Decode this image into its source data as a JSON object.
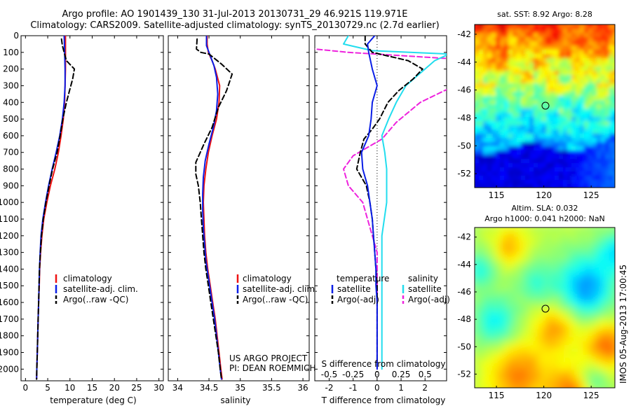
{
  "header": {
    "title_line1": "Argo profile: AO 1901439_130 31-Jul-2013 20130731_29 46.921S 119.971E",
    "title_line2": "Climatology: CARS2009. Satellite-adjusted climatology: synTS_20130729.nc (2.7d earlier)"
  },
  "credits": {
    "project": "US ARGO PROJECT",
    "pi": "PI: DEAN ROEMMICH",
    "side_stamp": "IMOS 05-Aug-2013 17:00:45"
  },
  "colors": {
    "climatology": "#ee1111",
    "satellite": "#0a1ee6",
    "argo": "#000000",
    "sal_satellite": "#22ddee",
    "sal_argo": "#ee22dd"
  },
  "chart_data": [
    {
      "type": "line",
      "panel": "temperature",
      "xlabel": "temperature (deg C)",
      "ylabel": "",
      "xlim": [
        -1,
        31
      ],
      "ylim": [
        2070,
        0
      ],
      "x_ticks": [
        "0",
        "5",
        "10",
        "15",
        "20",
        "25",
        "30"
      ],
      "y_ticks": [
        "0",
        "100",
        "200",
        "300",
        "400",
        "500",
        "600",
        "700",
        "800",
        "900",
        "1000",
        "1100",
        "1200",
        "1300",
        "1400",
        "1500",
        "1600",
        "1700",
        "1800",
        "1900",
        "2000"
      ],
      "legend": [
        "climatology",
        "satellite-adj. clim.",
        "Argo(..raw -QC)"
      ],
      "series": [
        {
          "name": "climatology",
          "style": "solid",
          "points": [
            [
              9,
              0
            ],
            [
              9,
              100
            ],
            [
              9,
              200
            ],
            [
              8.9,
              300
            ],
            [
              8.8,
              400
            ],
            [
              8.5,
              500
            ],
            [
              8,
              600
            ],
            [
              7.4,
              700
            ],
            [
              6.6,
              800
            ],
            [
              5.6,
              900
            ],
            [
              4.8,
              1000
            ],
            [
              4.1,
              1100
            ],
            [
              3.7,
              1200
            ],
            [
              3.4,
              1300
            ],
            [
              3.2,
              1400
            ],
            [
              3.1,
              1500
            ],
            [
              2.95,
              1600
            ],
            [
              2.85,
              1700
            ],
            [
              2.75,
              1800
            ],
            [
              2.65,
              1900
            ],
            [
              2.55,
              2000
            ],
            [
              2.5,
              2060
            ]
          ]
        },
        {
          "name": "satellite-adj. clim.",
          "style": "solid",
          "points": [
            [
              8.7,
              0
            ],
            [
              8.8,
              100
            ],
            [
              8.9,
              200
            ],
            [
              8.9,
              300
            ],
            [
              8.7,
              400
            ],
            [
              8.3,
              500
            ],
            [
              7.7,
              600
            ],
            [
              6.9,
              700
            ],
            [
              6,
              800
            ],
            [
              5.2,
              900
            ],
            [
              4.5,
              1000
            ],
            [
              3.9,
              1100
            ],
            [
              3.5,
              1200
            ],
            [
              3.3,
              1300
            ],
            [
              3.15,
              1400
            ],
            [
              3.05,
              1500
            ],
            [
              2.95,
              1600
            ],
            [
              2.85,
              1700
            ],
            [
              2.75,
              1800
            ],
            [
              2.65,
              1900
            ],
            [
              2.55,
              2000
            ],
            [
              2.5,
              2060
            ]
          ]
        },
        {
          "name": "Argo(..raw -QC)",
          "style": "dashed",
          "points": [
            [
              8.1,
              20
            ],
            [
              8.3,
              60
            ],
            [
              8.7,
              100
            ],
            [
              9.2,
              150
            ],
            [
              11,
              200
            ],
            [
              10.6,
              260
            ],
            [
              9.9,
              330
            ],
            [
              9.2,
              400
            ],
            [
              8.4,
              500
            ],
            [
              7.8,
              600
            ],
            [
              7.1,
              700
            ],
            [
              6.1,
              800
            ],
            [
              5.3,
              900
            ],
            [
              4.6,
              1000
            ],
            [
              4,
              1100
            ],
            [
              3.6,
              1200
            ],
            [
              3.35,
              1300
            ],
            [
              3.15,
              1400
            ],
            [
              3.05,
              1500
            ],
            [
              2.95,
              1600
            ],
            [
              2.85,
              1700
            ],
            [
              2.75,
              1800
            ],
            [
              2.65,
              1900
            ],
            [
              2.55,
              2000
            ],
            [
              2.5,
              2060
            ]
          ]
        }
      ]
    },
    {
      "type": "line",
      "panel": "salinity",
      "xlabel": "salinity",
      "ylabel": "",
      "xlim": [
        33.85,
        36.1
      ],
      "ylim": [
        2070,
        0
      ],
      "x_ticks": [
        "34",
        "34.5",
        "35",
        "35.5",
        "36"
      ],
      "legend": [
        "climatology",
        "satellite-adj. clim.",
        "Argo(..raw -QC)"
      ],
      "series": [
        {
          "name": "climatology",
          "style": "solid",
          "points": [
            [
              34.47,
              0
            ],
            [
              34.47,
              50
            ],
            [
              34.49,
              100
            ],
            [
              34.55,
              150
            ],
            [
              34.6,
              200
            ],
            [
              34.67,
              300
            ],
            [
              34.66,
              400
            ],
            [
              34.62,
              500
            ],
            [
              34.55,
              600
            ],
            [
              34.49,
              700
            ],
            [
              34.45,
              800
            ],
            [
              34.42,
              900
            ],
            [
              34.41,
              1000
            ],
            [
              34.42,
              1100
            ],
            [
              34.43,
              1200
            ],
            [
              34.45,
              1300
            ],
            [
              34.48,
              1400
            ],
            [
              34.52,
              1500
            ],
            [
              34.56,
              1600
            ],
            [
              34.6,
              1700
            ],
            [
              34.63,
              1800
            ],
            [
              34.66,
              1900
            ],
            [
              34.69,
              2000
            ],
            [
              34.71,
              2060
            ]
          ]
        },
        {
          "name": "satellite-adj. clim.",
          "style": "solid",
          "points": [
            [
              34.46,
              0
            ],
            [
              34.46,
              60
            ],
            [
              34.5,
              100
            ],
            [
              34.58,
              180
            ],
            [
              34.62,
              250
            ],
            [
              34.64,
              350
            ],
            [
              34.62,
              450
            ],
            [
              34.57,
              550
            ],
            [
              34.5,
              650
            ],
            [
              34.44,
              750
            ],
            [
              34.41,
              850
            ],
            [
              34.4,
              950
            ],
            [
              34.4,
              1050
            ],
            [
              34.41,
              1150
            ],
            [
              34.43,
              1250
            ],
            [
              34.45,
              1350
            ],
            [
              34.47,
              1400
            ],
            [
              34.51,
              1500
            ],
            [
              34.55,
              1600
            ],
            [
              34.59,
              1700
            ],
            [
              34.62,
              1800
            ],
            [
              34.65,
              1900
            ],
            [
              34.68,
              2000
            ],
            [
              34.7,
              2060
            ]
          ]
        },
        {
          "name": "Argo(..raw -QC)",
          "style": "dashed",
          "points": [
            [
              34.31,
              20
            ],
            [
              34.3,
              80
            ],
            [
              34.37,
              100
            ],
            [
              34.5,
              110
            ],
            [
              34.7,
              170
            ],
            [
              34.87,
              230
            ],
            [
              34.78,
              330
            ],
            [
              34.65,
              430
            ],
            [
              34.55,
              550
            ],
            [
              34.42,
              650
            ],
            [
              34.29,
              760
            ],
            [
              34.29,
              830
            ],
            [
              34.33,
              900
            ],
            [
              34.36,
              1000
            ],
            [
              34.38,
              1100
            ],
            [
              34.4,
              1200
            ],
            [
              34.42,
              1300
            ],
            [
              34.45,
              1400
            ],
            [
              34.49,
              1500
            ],
            [
              34.53,
              1600
            ],
            [
              34.57,
              1700
            ],
            [
              34.61,
              1800
            ],
            [
              34.65,
              1900
            ],
            [
              34.68,
              2000
            ],
            [
              34.7,
              2060
            ]
          ]
        }
      ]
    },
    {
      "type": "line",
      "panel": "difference",
      "xlabel_top": "S difference from climatology",
      "xlabel_bottom": "T difference from climatology",
      "xlim": [
        -2.6,
        2.9
      ],
      "ylim": [
        2070,
        0
      ],
      "x_ticks_bottom": [
        "-2",
        "-1",
        "0",
        "1",
        "2"
      ],
      "x_ticks_top": [
        "-0.5",
        "-0.25",
        "0",
        "0.25",
        "0.5"
      ],
      "legend_headers": [
        "temperature",
        "salinity"
      ],
      "legend": [
        "satellite",
        "Argo(-adj)",
        "satellite",
        "Argo(-adj)"
      ],
      "series": [
        {
          "name": "satellite",
          "group": "temperature",
          "style": "solid",
          "points": [
            [
              -0.1,
              0
            ],
            [
              -0.4,
              50
            ],
            [
              -0.35,
              100
            ],
            [
              -0.2,
              200
            ],
            [
              0,
              300
            ],
            [
              -0.2,
              400
            ],
            [
              -0.25,
              500
            ],
            [
              -0.35,
              600
            ],
            [
              -0.65,
              700
            ],
            [
              -0.6,
              800
            ],
            [
              -0.4,
              900
            ],
            [
              -0.3,
              1000
            ],
            [
              -0.2,
              1100
            ],
            [
              -0.15,
              1200
            ],
            [
              -0.1,
              1300
            ],
            [
              -0.05,
              1400
            ],
            [
              -0.05,
              1500
            ],
            [
              0,
              1600
            ],
            [
              0,
              2000
            ]
          ]
        },
        {
          "name": "Argo(-adj)",
          "group": "temperature",
          "style": "dashed",
          "points": [
            [
              -0.5,
              0
            ],
            [
              -0.5,
              50
            ],
            [
              -0.2,
              100
            ],
            [
              1.3,
              150
            ],
            [
              1.9,
              200
            ],
            [
              1.5,
              260
            ],
            [
              0.9,
              330
            ],
            [
              0.45,
              400
            ],
            [
              0.1,
              500
            ],
            [
              -0.2,
              560
            ],
            [
              -0.55,
              620
            ],
            [
              -0.7,
              700
            ],
            [
              -0.85,
              800
            ],
            [
              -0.65,
              850
            ],
            [
              -0.45,
              900
            ],
            [
              -0.3,
              1000
            ],
            [
              -0.2,
              1100
            ],
            [
              -0.15,
              1200
            ],
            [
              -0.1,
              1300
            ],
            [
              -0.05,
              1400
            ],
            [
              0,
              1500
            ],
            [
              0,
              2000
            ]
          ]
        },
        {
          "name": "satellite",
          "group": "salinity",
          "style": "solid",
          "points": [
            [
              -0.3,
              0
            ],
            [
              -0.35,
              50
            ],
            [
              -0.05,
              90
            ],
            [
              0.75,
              110
            ],
            [
              0.6,
              150
            ],
            [
              0.5,
              200
            ],
            [
              0.3,
              300
            ],
            [
              0.2,
              400
            ],
            [
              0.12,
              500
            ],
            [
              0.05,
              600
            ],
            [
              0.08,
              700
            ],
            [
              0.1,
              800
            ],
            [
              0.1,
              900
            ],
            [
              0.1,
              1000
            ],
            [
              0.05,
              1200
            ],
            [
              0.05,
              1400
            ],
            [
              0.05,
              1600
            ],
            [
              0.05,
              2000
            ]
          ]
        },
        {
          "name": "Argo(-adj)",
          "group": "salinity",
          "style": "dashed",
          "points": [
            [
              -1,
              0
            ],
            [
              -1,
              60
            ],
            [
              -0.3,
              100
            ],
            [
              1.1,
              150
            ],
            [
              1.65,
              190
            ],
            [
              1.0,
              260
            ],
            [
              0.7,
              330
            ],
            [
              0.45,
              400
            ],
            [
              0.2,
              520
            ],
            [
              0.05,
              620
            ],
            [
              -0.25,
              720
            ],
            [
              -0.35,
              800
            ],
            [
              -0.3,
              900
            ],
            [
              -0.15,
              1000
            ],
            [
              -0.1,
              1100
            ],
            [
              0,
              1300
            ],
            [
              0,
              2000
            ]
          ]
        }
      ]
    },
    {
      "type": "heatmap",
      "panel": "sst_map",
      "title": "sat. SST: 8.92  Argo: 8.28",
      "x_ticks": [
        "115",
        "120",
        "125"
      ],
      "y_ticks": [
        "-42",
        "-44",
        "-46",
        "-48",
        "-50",
        "-52"
      ],
      "xlim": [
        112.7,
        127.5
      ],
      "ylim": [
        -53,
        -41.3
      ],
      "marker": [
        119.97,
        -46.92
      ]
    },
    {
      "type": "heatmap",
      "panel": "sla_map",
      "title_line1": "Altim. SLA: 0.032",
      "title_line2": "Argo h1000: 0.041 h2000: NaN",
      "x_ticks": [
        "115",
        "120",
        "125"
      ],
      "y_ticks": [
        "-42",
        "-44",
        "-46",
        "-48",
        "-50",
        "-52"
      ],
      "xlim": [
        112.7,
        127.5
      ],
      "ylim": [
        -53,
        -41.3
      ],
      "marker": [
        119.97,
        -46.92
      ]
    }
  ]
}
